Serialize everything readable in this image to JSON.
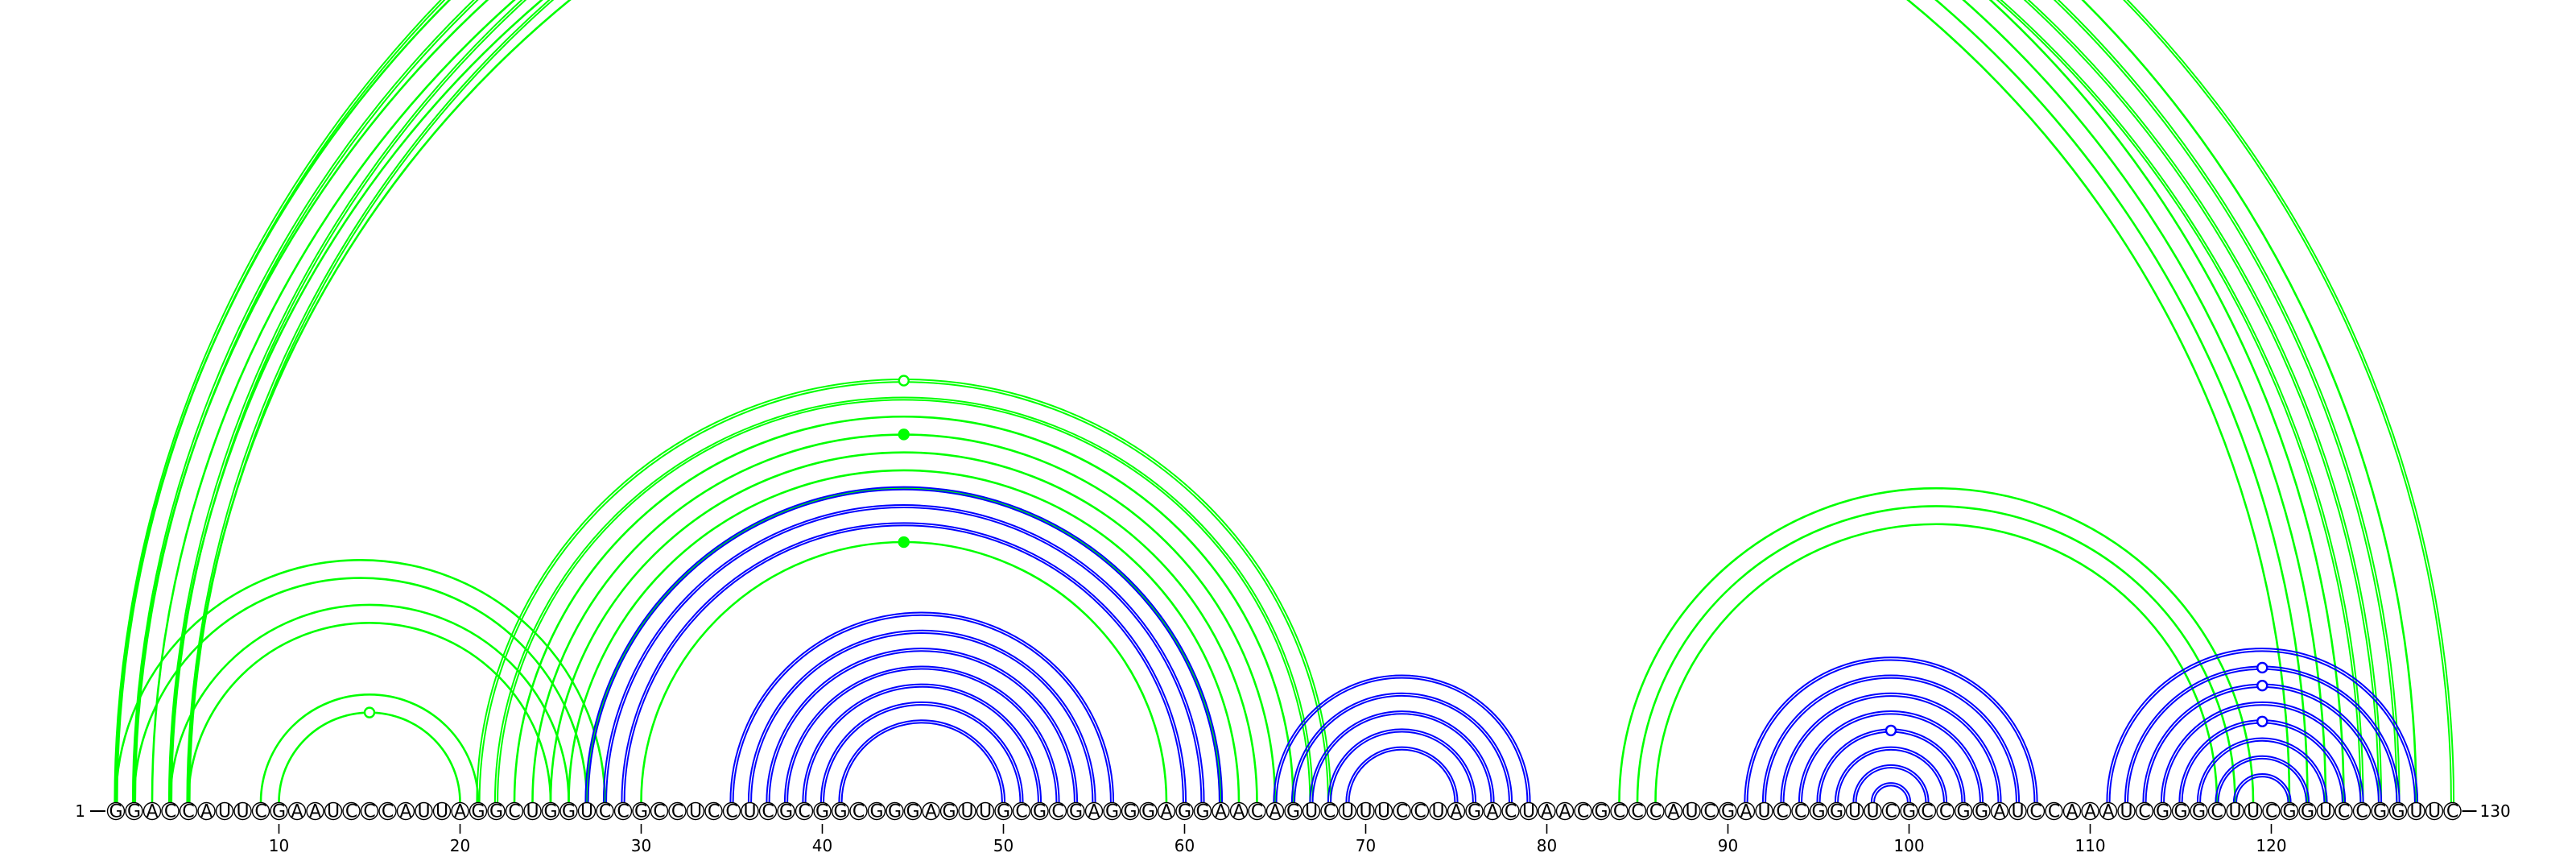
{
  "sequence": "GGACCAUUCGAAUCCCAUUAGGCUGGUCCGCCUCCUCGCGGCGGGAGUUGCGCGAGGGAGGAACAGUCUUUCCUAGACUAACGCCCAUCGAUCCGGUUCGCCGGAUCCAAAUCGGGCUUCGGUCCGGUUC",
  "start_label": "1",
  "end_label": "130",
  "tick_labels": [
    "10",
    "20",
    "30",
    "40",
    "50",
    "60",
    "70",
    "80",
    "90",
    "100",
    "110",
    "120"
  ],
  "colors": {
    "green": "#00ff00",
    "blue": "#0000ff",
    "nucleotide_fill": "#ffffff",
    "axis": "#000000"
  },
  "arcs": [
    {
      "i": 1,
      "j": 128,
      "color": "green",
      "double": false
    },
    {
      "i": 2,
      "j": 124,
      "color": "green",
      "double": false
    },
    {
      "i": 3,
      "j": 123,
      "color": "green",
      "double": false
    },
    {
      "i": 4,
      "j": 122,
      "color": "green",
      "double": false
    },
    {
      "i": 5,
      "j": 121,
      "color": "green",
      "double": false
    },
    {
      "i": 1,
      "j": 130,
      "color": "green",
      "double": true
    },
    {
      "i": 2,
      "j": 127,
      "color": "green",
      "double": true
    },
    {
      "i": 4,
      "j": 126,
      "color": "green",
      "double": true
    },
    {
      "i": 5,
      "j": 125,
      "color": "green",
      "double": true
    },
    {
      "i": 1,
      "j": 28,
      "color": "green",
      "double": false
    },
    {
      "i": 2,
      "j": 27,
      "color": "green",
      "double": false
    },
    {
      "i": 4,
      "j": 26,
      "color": "green",
      "double": false
    },
    {
      "i": 5,
      "j": 25,
      "color": "green",
      "double": false
    },
    {
      "i": 9,
      "j": 21,
      "color": "green",
      "double": false
    },
    {
      "i": 10,
      "j": 20,
      "color": "green",
      "double": false
    },
    {
      "i": 21,
      "j": 68,
      "color": "green",
      "double": true
    },
    {
      "i": 22,
      "j": 67,
      "color": "green",
      "double": true
    },
    {
      "i": 23,
      "j": 66,
      "color": "green",
      "double": false
    },
    {
      "i": 24,
      "j": 65,
      "color": "green",
      "double": false
    },
    {
      "i": 25,
      "j": 64,
      "color": "green",
      "double": false
    },
    {
      "i": 26,
      "j": 63,
      "color": "green",
      "double": false
    },
    {
      "i": 27,
      "j": 62,
      "color": "green",
      "double": false
    },
    {
      "i": 30,
      "j": 59,
      "color": "green",
      "double": false
    },
    {
      "i": 27,
      "j": 62,
      "color": "blue",
      "double": true
    },
    {
      "i": 28,
      "j": 61,
      "color": "blue",
      "double": true
    },
    {
      "i": 29,
      "j": 60,
      "color": "blue",
      "double": true
    },
    {
      "i": 35,
      "j": 56,
      "color": "blue",
      "double": true
    },
    {
      "i": 36,
      "j": 55,
      "color": "blue",
      "double": true
    },
    {
      "i": 37,
      "j": 54,
      "color": "blue",
      "double": true
    },
    {
      "i": 38,
      "j": 53,
      "color": "blue",
      "double": true
    },
    {
      "i": 39,
      "j": 52,
      "color": "blue",
      "double": true
    },
    {
      "i": 40,
      "j": 51,
      "color": "blue",
      "double": true
    },
    {
      "i": 41,
      "j": 50,
      "color": "blue",
      "double": true
    },
    {
      "i": 65,
      "j": 79,
      "color": "blue",
      "double": true
    },
    {
      "i": 66,
      "j": 78,
      "color": "blue",
      "double": true
    },
    {
      "i": 67,
      "j": 77,
      "color": "blue",
      "double": true
    },
    {
      "i": 68,
      "j": 76,
      "color": "blue",
      "double": true
    },
    {
      "i": 69,
      "j": 75,
      "color": "blue",
      "double": true
    },
    {
      "i": 84,
      "j": 119,
      "color": "green",
      "double": false
    },
    {
      "i": 85,
      "j": 118,
      "color": "green",
      "double": false
    },
    {
      "i": 86,
      "j": 117,
      "color": "green",
      "double": false
    },
    {
      "i": 91,
      "j": 107,
      "color": "blue",
      "double": true
    },
    {
      "i": 92,
      "j": 106,
      "color": "blue",
      "double": true
    },
    {
      "i": 93,
      "j": 105,
      "color": "blue",
      "double": true
    },
    {
      "i": 94,
      "j": 104,
      "color": "blue",
      "double": true
    },
    {
      "i": 95,
      "j": 103,
      "color": "blue",
      "double": true
    },
    {
      "i": 96,
      "j": 102,
      "color": "blue",
      "double": true
    },
    {
      "i": 97,
      "j": 101,
      "color": "blue",
      "double": true
    },
    {
      "i": 98,
      "j": 100,
      "color": "blue",
      "double": true
    },
    {
      "i": 111,
      "j": 128,
      "color": "blue",
      "double": true
    },
    {
      "i": 112,
      "j": 127,
      "color": "blue",
      "double": true
    },
    {
      "i": 113,
      "j": 126,
      "color": "blue",
      "double": true
    },
    {
      "i": 114,
      "j": 125,
      "color": "blue",
      "double": true
    },
    {
      "i": 115,
      "j": 124,
      "color": "blue",
      "double": true
    },
    {
      "i": 116,
      "j": 123,
      "color": "blue",
      "double": true
    },
    {
      "i": 117,
      "j": 122,
      "color": "blue",
      "double": true
    },
    {
      "i": 118,
      "j": 121,
      "color": "blue",
      "double": true
    }
  ],
  "markers": [
    {
      "arc_index": 5,
      "style": "open",
      "color": "green"
    },
    {
      "arc_index": 14,
      "style": "open",
      "color": "green"
    },
    {
      "arc_index": 15,
      "style": "open",
      "color": "green"
    },
    {
      "arc_index": 18,
      "style": "filled",
      "color": "green"
    },
    {
      "arc_index": 22,
      "style": "filled",
      "color": "green"
    },
    {
      "arc_index": 45,
      "style": "open",
      "color": "blue"
    },
    {
      "arc_index": 50,
      "style": "open",
      "color": "blue"
    },
    {
      "arc_index": 51,
      "style": "open",
      "color": "blue"
    },
    {
      "arc_index": 53,
      "style": "open",
      "color": "blue"
    }
  ]
}
